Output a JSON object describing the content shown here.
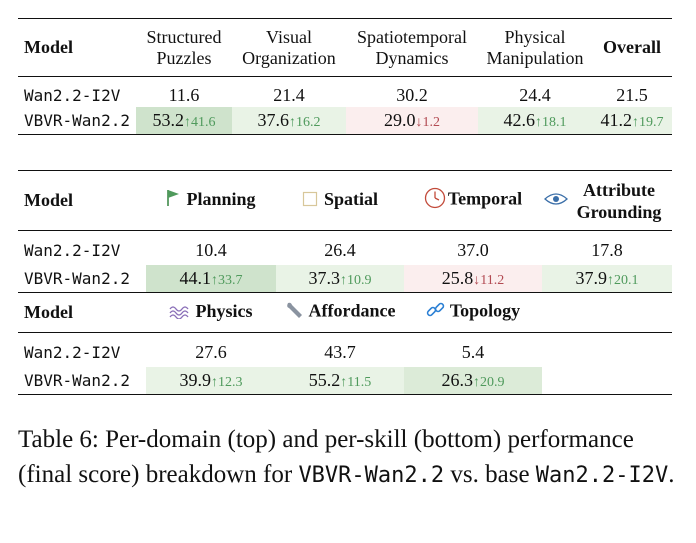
{
  "table_top": {
    "headers": [
      "Model",
      "Structured Puzzles",
      "Visual Organization",
      "Spatiotemporal Dynamics",
      "Physical Manipulation",
      "Overall"
    ],
    "header_lines": [
      [
        "Model"
      ],
      [
        "Structured",
        "Puzzles"
      ],
      [
        "Visual",
        "Organization"
      ],
      [
        "Spatiotemporal",
        "Dynamics"
      ],
      [
        "Physical",
        "Manipulation"
      ],
      [
        "Overall"
      ]
    ],
    "rows": [
      {
        "model": "Wan2.2-I2V",
        "values": [
          "11.6",
          "21.4",
          "30.2",
          "24.4",
          "21.5"
        ],
        "deltas": [
          "",
          "",
          "",
          "",
          ""
        ]
      },
      {
        "model": "VBVR-Wan2.2",
        "values": [
          "53.2",
          "37.6",
          "29.0",
          "42.6",
          "41.2"
        ],
        "deltas": [
          "↑41.6",
          "↑16.2",
          "↓1.2",
          "↑18.1",
          "↑19.7"
        ]
      }
    ]
  },
  "table_skill_a": {
    "headers": [
      "Model",
      "Planning",
      "Spatial",
      "Temporal",
      "Attribute Grounding"
    ],
    "attr_lines": [
      "Attribute",
      "Grounding"
    ],
    "icons": [
      "flag-icon",
      "square-icon",
      "clock-icon",
      "eye-icon"
    ],
    "rows": [
      {
        "model": "Wan2.2-I2V",
        "values": [
          "10.4",
          "26.4",
          "37.0",
          "17.8"
        ],
        "deltas": [
          "",
          "",
          "",
          ""
        ]
      },
      {
        "model": "VBVR-Wan2.2",
        "values": [
          "44.1",
          "37.3",
          "25.8",
          "37.9"
        ],
        "deltas": [
          "↑33.7",
          "↑10.9",
          "↓11.2",
          "↑20.1"
        ]
      }
    ]
  },
  "table_skill_b": {
    "headers": [
      "Model",
      "Physics",
      "Affordance",
      "Topology"
    ],
    "icons": [
      "waves-icon",
      "wrench-icon",
      "link-icon"
    ],
    "rows": [
      {
        "model": "Wan2.2-I2V",
        "values": [
          "27.6",
          "43.7",
          "5.4"
        ],
        "deltas": [
          "",
          "",
          ""
        ]
      },
      {
        "model": "VBVR-Wan2.2",
        "values": [
          "39.9",
          "55.2",
          "26.3"
        ],
        "deltas": [
          "↑12.3",
          "↑11.5",
          "↑20.9"
        ]
      }
    ]
  },
  "caption": {
    "prefix": "Table 6: Per-domain (top) and per-skill (bottom) performance (final score) breakdown for ",
    "model_a": "VBVR-Wan2.2",
    "middle": " vs. base ",
    "model_b": "Wan2.2-I2V",
    "suffix": "."
  },
  "colors": {
    "up": "#4f9a5c",
    "down": "#b24a52",
    "highlight_green": "#cfe3cc",
    "highlight_red": "#fbeeee"
  }
}
